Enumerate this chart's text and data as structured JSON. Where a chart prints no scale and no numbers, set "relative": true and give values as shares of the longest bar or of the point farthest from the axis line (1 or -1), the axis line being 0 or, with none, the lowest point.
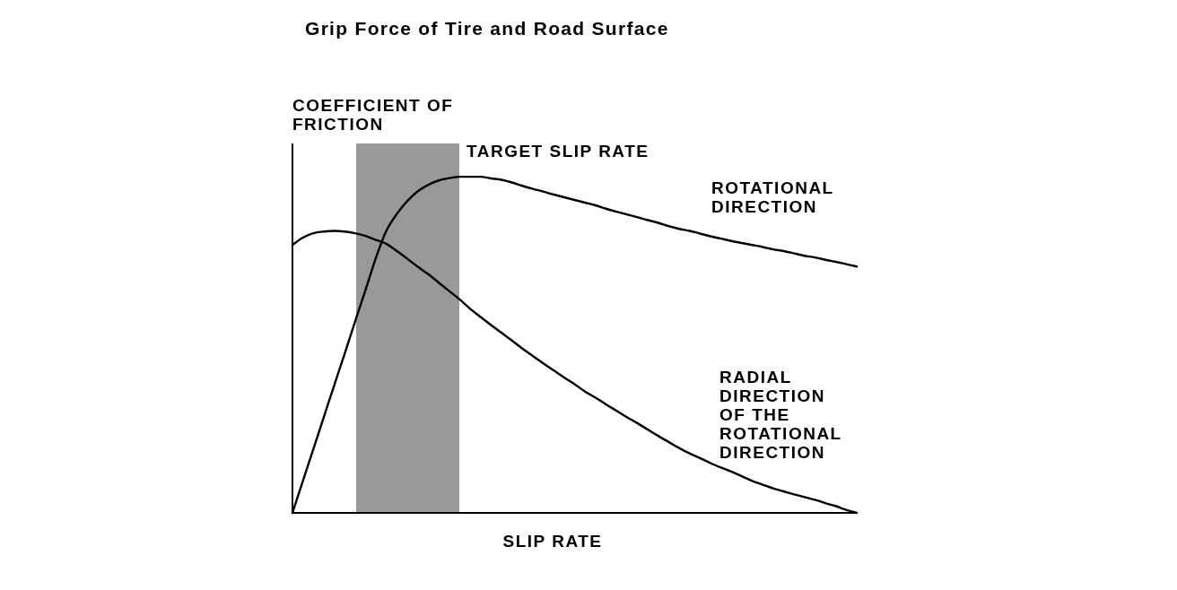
{
  "chart_data": {
    "type": "line",
    "title": "Grip Force of Tire and Road Surface",
    "xlabel": "SLIP RATE",
    "ylabel": "COEFFICIENT OF FRICTION",
    "relative": true,
    "categories": [
      null,
      null,
      null,
      null,
      null,
      null,
      null,
      null,
      null,
      null,
      null,
      null,
      null,
      null,
      null,
      null,
      null,
      null,
      null,
      null,
      null,
      null,
      null,
      null,
      null,
      null,
      null,
      null,
      null,
      null,
      null,
      null,
      null,
      null,
      null,
      null,
      null,
      null,
      null,
      null,
      null,
      null,
      null,
      null,
      null,
      null,
      null,
      null,
      null,
      null,
      null,
      null,
      null,
      null,
      null
    ],
    "series": [
      {
        "name": "ROTATIONAL DIRECTION",
        "color": "#000000",
        "values": [
          0,
          0.095,
          0.19,
          0.285,
          0.38,
          0.474,
          0.57,
          0.664,
          0.76,
          0.84,
          0.89,
          0.928,
          0.957,
          0.976,
          0.989,
          0.996,
          1,
          1,
          1,
          0.995,
          0.991,
          0.983,
          0.973,
          0.964,
          0.956,
          0.947,
          0.939,
          0.931,
          0.923,
          0.915,
          0.905,
          0.896,
          0.888,
          0.88,
          0.871,
          0.863,
          0.853,
          0.845,
          0.839,
          0.831,
          0.823,
          0.816,
          0.809,
          0.803,
          0.797,
          0.791,
          0.784,
          0.779,
          0.772,
          0.765,
          0.76,
          0.753,
          0.747,
          0.74,
          0.733
        ]
      },
      {
        "name": "RADIAL DIRECTION OF THE ROTATIONAL DIRECTION",
        "color": "#000000",
        "values": [
          0.797,
          0.819,
          0.832,
          0.837,
          0.839,
          0.837,
          0.832,
          0.824,
          0.812,
          0.8,
          0.779,
          0.756,
          0.732,
          0.71,
          0.685,
          0.66,
          0.635,
          0.607,
          0.583,
          0.559,
          0.536,
          0.513,
          0.489,
          0.467,
          0.445,
          0.424,
          0.403,
          0.383,
          0.361,
          0.343,
          0.323,
          0.304,
          0.285,
          0.267,
          0.248,
          0.229,
          0.211,
          0.193,
          0.177,
          0.163,
          0.148,
          0.135,
          0.123,
          0.109,
          0.095,
          0.084,
          0.073,
          0.064,
          0.055,
          0.047,
          0.039,
          0.029,
          0.02,
          0.009,
          0
        ]
      }
    ],
    "annotations": [
      "TARGET SLIP RATE"
    ]
  }
}
